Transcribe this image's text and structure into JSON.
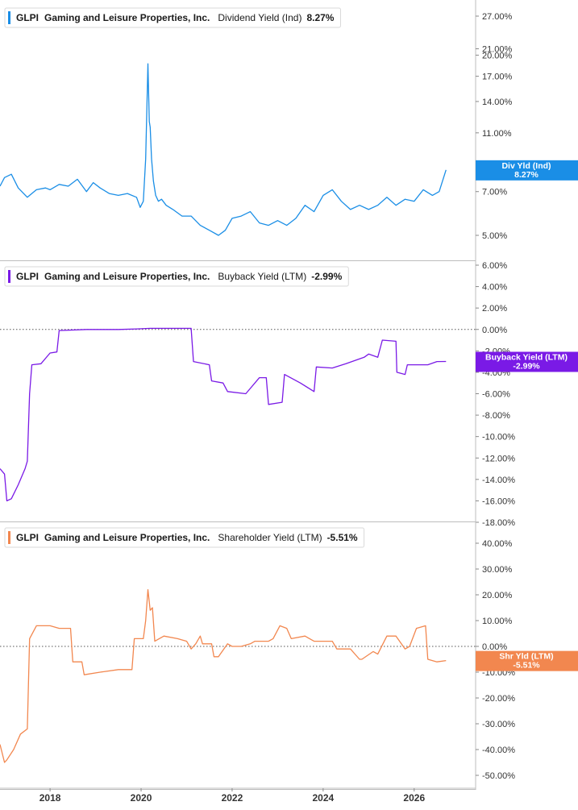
{
  "chart_data": [
    {
      "type": "line",
      "ticker": "GLPI",
      "company": "Gaming and Leisure Properties, Inc.",
      "metric": "Dividend Yield (Ind)",
      "value_label": "8.27%",
      "tag_label": "Div Yld (Ind)",
      "tag_value": "8.27%",
      "color": "#1a8ee6",
      "scale": "log",
      "ylim": [
        4.4,
        30
      ],
      "yticks": [
        {
          "v": 27,
          "label": "27.00%"
        },
        {
          "v": 21,
          "label": "21.00%"
        },
        {
          "v": 20,
          "label": "20.00%"
        },
        {
          "v": 17,
          "label": "17.00%"
        },
        {
          "v": 14,
          "label": "14.00%"
        },
        {
          "v": 11,
          "label": "11.00%"
        },
        {
          "v": 8,
          "label": "8.00%"
        },
        {
          "v": 7,
          "label": "7.00%"
        },
        {
          "v": 5,
          "label": "5.00%"
        }
      ],
      "series": [
        {
          "x": [
            2016.9,
            2017.0,
            2017.15,
            2017.3,
            2017.5,
            2017.7,
            2017.9,
            2018.0,
            2018.2,
            2018.4,
            2018.6,
            2018.8,
            2018.95,
            2019.1,
            2019.3,
            2019.5,
            2019.7,
            2019.9,
            2019.98,
            2020.05,
            2020.1,
            2020.15,
            2020.18,
            2020.2,
            2020.23,
            2020.27,
            2020.32,
            2020.38,
            2020.45,
            2020.55,
            2020.7,
            2020.9,
            2021.1,
            2021.3,
            2021.5,
            2021.7,
            2021.85,
            2022.0,
            2022.2,
            2022.4,
            2022.6,
            2022.8,
            2023.0,
            2023.2,
            2023.4,
            2023.6,
            2023.8,
            2024.0,
            2024.2,
            2024.4,
            2024.6,
            2024.8,
            2025.0,
            2025.2,
            2025.4,
            2025.6,
            2025.8,
            2026.0,
            2026.2,
            2026.4,
            2026.55,
            2026.7
          ],
          "values": [
            7.3,
            7.8,
            8.0,
            7.2,
            6.7,
            7.1,
            7.2,
            7.1,
            7.4,
            7.3,
            7.7,
            7.0,
            7.5,
            7.2,
            6.9,
            6.8,
            6.9,
            6.7,
            6.2,
            6.5,
            9.0,
            18.7,
            12.0,
            11.5,
            9.0,
            7.6,
            6.8,
            6.5,
            6.6,
            6.3,
            6.1,
            5.8,
            5.8,
            5.4,
            5.2,
            5.0,
            5.2,
            5.7,
            5.8,
            6.0,
            5.5,
            5.4,
            5.6,
            5.4,
            5.7,
            6.3,
            6.0,
            6.8,
            7.1,
            6.5,
            6.1,
            6.3,
            6.1,
            6.3,
            6.7,
            6.3,
            6.6,
            6.5,
            7.1,
            6.8,
            7.0,
            8.27
          ]
        }
      ]
    },
    {
      "type": "line",
      "ticker": "GLPI",
      "company": "Gaming and Leisure Properties, Inc.",
      "metric": "Buyback Yield (LTM)",
      "value_label": "-2.99%",
      "tag_label": "Buyback Yield (LTM)",
      "tag_value": "-2.99%",
      "color": "#7a1ae6",
      "scale": "linear",
      "ylim": [
        -18,
        6
      ],
      "yticks": [
        {
          "v": 6,
          "label": "6.00%"
        },
        {
          "v": 4,
          "label": "4.00%"
        },
        {
          "v": 2,
          "label": "2.00%"
        },
        {
          "v": 0,
          "label": "0.00%"
        },
        {
          "v": -2,
          "label": "-2.00%"
        },
        {
          "v": -4,
          "label": "-4.00%"
        },
        {
          "v": -6,
          "label": "-6.00%"
        },
        {
          "v": -8,
          "label": "-8.00%"
        },
        {
          "v": -10,
          "label": "-10.00%"
        },
        {
          "v": -12,
          "label": "-12.00%"
        },
        {
          "v": -14,
          "label": "-14.00%"
        },
        {
          "v": -16,
          "label": "-16.00%"
        },
        {
          "v": -18,
          "label": "-18.00%"
        }
      ],
      "series": [
        {
          "x": [
            2016.9,
            2017.0,
            2017.05,
            2017.15,
            2017.3,
            2017.45,
            2017.5,
            2017.55,
            2017.6,
            2017.8,
            2018.0,
            2018.15,
            2018.2,
            2018.8,
            2019.0,
            2019.5,
            2019.9,
            2020.2,
            2020.5,
            2020.8,
            2021.1,
            2021.15,
            2021.5,
            2021.55,
            2021.8,
            2021.9,
            2022.3,
            2022.6,
            2022.75,
            2022.8,
            2023.1,
            2023.15,
            2023.5,
            2023.8,
            2023.85,
            2024.2,
            2024.5,
            2024.9,
            2025.0,
            2025.2,
            2025.3,
            2025.6,
            2025.62,
            2025.8,
            2025.85,
            2026.3,
            2026.5,
            2026.7
          ],
          "values": [
            -13.0,
            -13.5,
            -16.0,
            -15.8,
            -14.5,
            -13.0,
            -12.3,
            -6.0,
            -3.3,
            -3.2,
            -2.2,
            -2.1,
            -0.1,
            0.0,
            0.0,
            0.0,
            0.05,
            0.1,
            0.1,
            0.1,
            0.1,
            -3.0,
            -3.3,
            -4.8,
            -5.0,
            -5.8,
            -6.0,
            -4.5,
            -4.5,
            -7.0,
            -6.8,
            -4.2,
            -5.0,
            -5.8,
            -3.5,
            -3.6,
            -3.2,
            -2.6,
            -2.3,
            -2.6,
            -1.0,
            -1.1,
            -4.0,
            -4.2,
            -3.3,
            -3.3,
            -3.0,
            -2.99
          ]
        }
      ]
    },
    {
      "type": "line",
      "ticker": "GLPI",
      "company": "Gaming and Leisure Properties, Inc.",
      "metric": "Shareholder Yield (LTM)",
      "value_label": "-5.51%",
      "tag_label": "Shr Yld (LTM)",
      "tag_value": "-5.51%",
      "color": "#f2874f",
      "scale": "linear",
      "ylim": [
        -50,
        40
      ],
      "yticks": [
        {
          "v": 40,
          "label": "40.00%"
        },
        {
          "v": 30,
          "label": "30.00%"
        },
        {
          "v": 20,
          "label": "20.00%"
        },
        {
          "v": 10,
          "label": "10.00%"
        },
        {
          "v": 0,
          "label": "0.00%"
        },
        {
          "v": -10,
          "label": "-10.00%"
        },
        {
          "v": -20,
          "label": "-20.00%"
        },
        {
          "v": -30,
          "label": "-30.00%"
        },
        {
          "v": -40,
          "label": "-40.00%"
        },
        {
          "v": -50,
          "label": "-50.00%"
        }
      ],
      "series": [
        {
          "x": [
            2016.9,
            2017.0,
            2017.05,
            2017.2,
            2017.35,
            2017.5,
            2017.55,
            2017.7,
            2018.0,
            2018.2,
            2018.45,
            2018.5,
            2018.7,
            2018.75,
            2019.1,
            2019.5,
            2019.8,
            2019.85,
            2020.05,
            2020.1,
            2020.15,
            2020.2,
            2020.25,
            2020.3,
            2020.5,
            2020.8,
            2021.0,
            2021.1,
            2021.2,
            2021.3,
            2021.35,
            2021.55,
            2021.6,
            2021.7,
            2021.9,
            2022.0,
            2022.2,
            2022.4,
            2022.5,
            2022.8,
            2022.9,
            2023.05,
            2023.2,
            2023.3,
            2023.6,
            2023.8,
            2024.2,
            2024.3,
            2024.6,
            2024.8,
            2024.85,
            2025.1,
            2025.2,
            2025.4,
            2025.6,
            2025.8,
            2025.9,
            2026.05,
            2026.25,
            2026.3,
            2026.5,
            2026.7
          ],
          "values": [
            -38,
            -45,
            -44,
            -40,
            -34,
            -32,
            3,
            8,
            8,
            7,
            7,
            -6,
            -6,
            -11,
            -10,
            -9,
            -9,
            3,
            3,
            10,
            22,
            14,
            15,
            2,
            4,
            3,
            2,
            -1,
            1,
            4,
            1,
            1,
            -4,
            -4,
            1,
            0,
            0,
            1,
            2,
            2,
            3,
            8,
            7,
            3,
            4,
            2,
            2,
            -1,
            -1,
            -5,
            -5,
            -2,
            -3,
            4,
            4,
            -1,
            0,
            7,
            8,
            -5,
            -6,
            -5.51
          ]
        }
      ]
    }
  ],
  "x_axis": {
    "xlim": [
      2016.9,
      2027.35
    ],
    "ticks": [
      {
        "v": 2018,
        "label": "2018"
      },
      {
        "v": 2020,
        "label": "2020"
      },
      {
        "v": 2022,
        "label": "2022"
      },
      {
        "v": 2024,
        "label": "2024"
      },
      {
        "v": 2026,
        "label": "2026"
      }
    ]
  },
  "zero_line_color": "#555555",
  "axis_color": "#bdbdbd",
  "legend_border_color": "#d9d9d9"
}
